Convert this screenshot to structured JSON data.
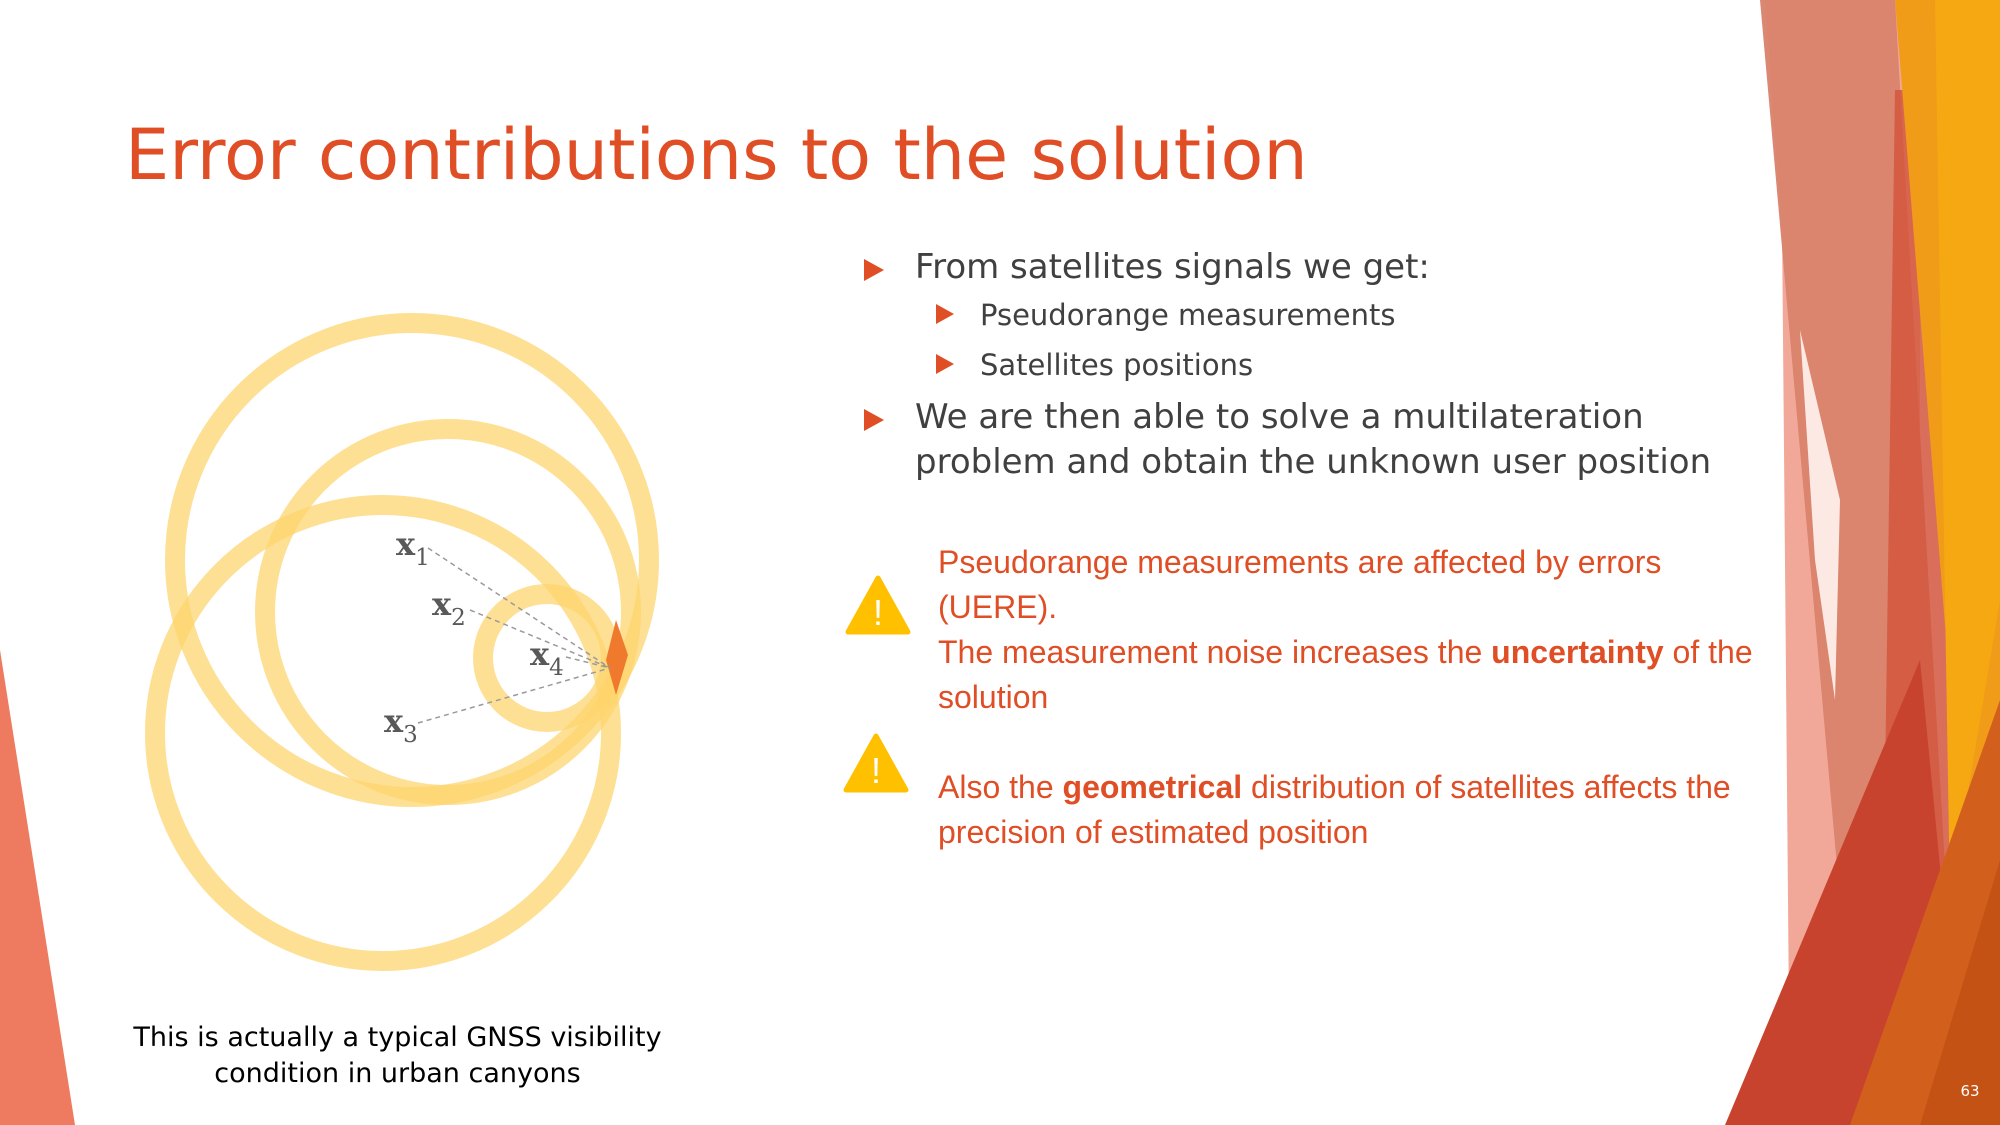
{
  "slide": {
    "title": "Error contributions to the solution",
    "page_number": "63"
  },
  "bullets": {
    "item1": "From satellites signals we get:",
    "item1_sub1": "Pseudorange measurements",
    "item1_sub2": "Satellites positions",
    "item2": "We are then able to solve a multilateration problem and obtain the unknown user position"
  },
  "warnings": {
    "w1_line1": "Pseudorange measurements are affected by errors (UERE).",
    "w1_line2_pre": "The measurement noise increases the ",
    "w1_line2_bold": "uncertainty",
    "w1_line2_post": " of the solution",
    "w2_pre": "Also the ",
    "w2_bold": "geometrical",
    "w2_post": " distribution of satellites affects the precision of estimated position",
    "icon_glyph": "!"
  },
  "diagram": {
    "x1_base": "x",
    "x1_sub": "1",
    "x2_base": "x",
    "x2_sub": "2",
    "x3_base": "x",
    "x3_sub": "3",
    "x4_base": "x",
    "x4_sub": "4",
    "caption": "This is actually a typical GNSS visibility condition in urban canyons"
  },
  "colors": {
    "accent": "#e04e26",
    "text": "#404040",
    "circle": "#fdd46b",
    "intersection": "#ef7a2e",
    "warning_icon": "#ffc000"
  }
}
